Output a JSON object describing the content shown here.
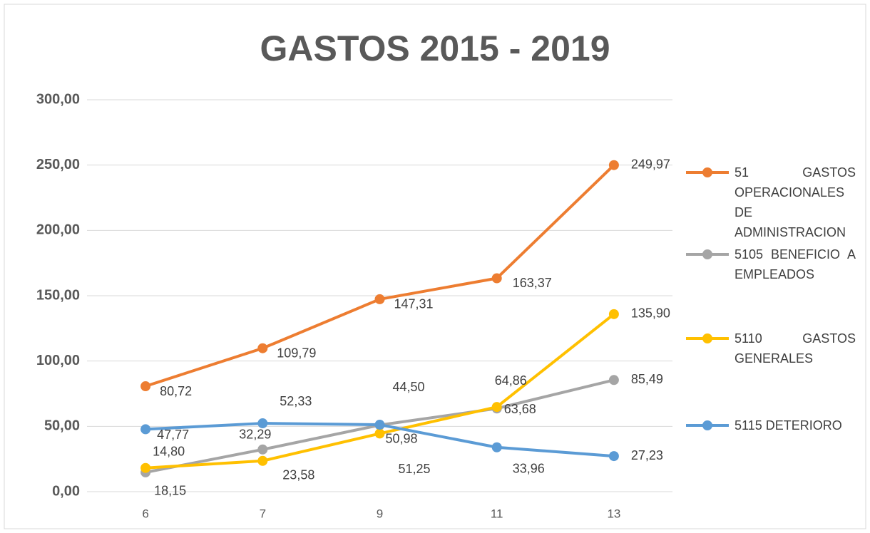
{
  "chart_data": {
    "type": "line",
    "title": "GASTOS 2015 - 2019",
    "categories": [
      "6",
      "7",
      "9",
      "11",
      "13"
    ],
    "ylim": [
      0,
      300
    ],
    "yticks": [
      {
        "value": 0,
        "label": "0,00"
      },
      {
        "value": 50,
        "label": "50,00"
      },
      {
        "value": 100,
        "label": "100,00"
      },
      {
        "value": 150,
        "label": "150,00"
      },
      {
        "value": 200,
        "label": "200,00"
      },
      {
        "value": 250,
        "label": "250,00"
      },
      {
        "value": 300,
        "label": "300,00"
      }
    ],
    "grid": true,
    "legend": "right",
    "series": [
      {
        "name": "51 GASTOS OPERACIONALES DE ADMINISTRACION",
        "color": "#ED7D31",
        "values": [
          80.72,
          109.79,
          147.31,
          163.37,
          249.97
        ],
        "value_labels": [
          "80,72",
          "109,79",
          "147,31",
          "163,37",
          "249,97"
        ]
      },
      {
        "name": "5105 BENEFICIO A EMPLEADOS",
        "color": "#A5A5A5",
        "values": [
          14.8,
          32.29,
          50.98,
          63.68,
          85.49
        ],
        "value_labels": [
          "14,80",
          "32,29",
          "50,98",
          "63,68",
          "85,49"
        ]
      },
      {
        "name": "5110 GASTOS GENERALES",
        "color": "#FFC000",
        "values": [
          18.15,
          23.58,
          44.5,
          64.86,
          135.9
        ],
        "value_labels": [
          "18,15",
          "23,58",
          "44,50",
          "64,86",
          "135,90"
        ]
      },
      {
        "name": "5115 DETERIORO",
        "color": "#5B9BD5",
        "values": [
          47.77,
          52.33,
          51.25,
          33.96,
          27.23
        ],
        "value_labels": [
          "47,77",
          "52,33",
          "51,25",
          "33,96",
          "27,23"
        ]
      }
    ]
  }
}
